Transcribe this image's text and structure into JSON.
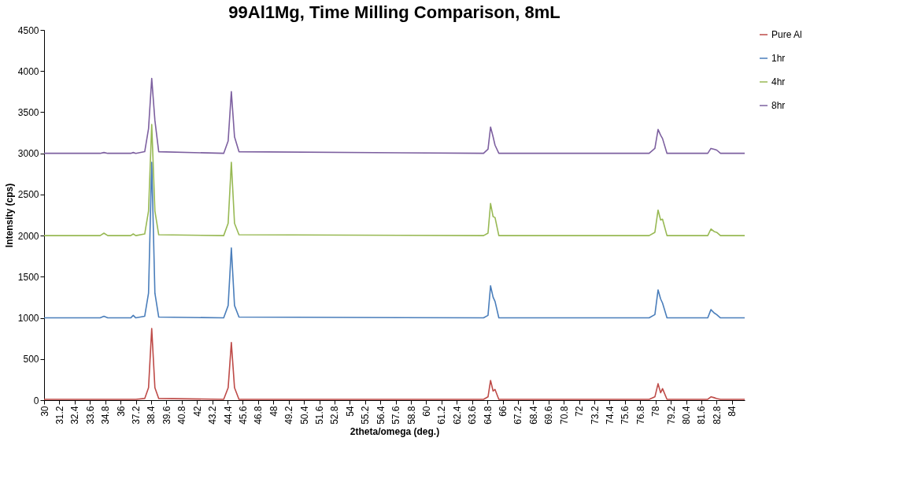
{
  "chart_data": {
    "type": "line",
    "title": "99Al1Mg, Time Milling Comparison, 8mL",
    "xlabel": "2theta/omega (deg.)",
    "ylabel": "Intensity (cps)",
    "x": [
      30,
      34.4,
      34.7,
      35.0,
      36.8,
      37.0,
      37.2,
      37.9,
      38.2,
      38.45,
      38.7,
      39.0,
      44.1,
      44.45,
      44.7,
      44.95,
      45.3,
      64.5,
      64.85,
      65.05,
      65.25,
      65.4,
      65.7,
      77.5,
      77.95,
      78.2,
      78.4,
      78.55,
      78.9,
      82.1,
      82.35,
      82.6,
      82.8,
      83.1,
      85
    ],
    "series": [
      {
        "name": "Pure Al",
        "color": "#be4b48",
        "values": [
          10,
          10,
          10,
          10,
          10,
          10,
          10,
          20,
          150,
          870,
          150,
          20,
          10,
          150,
          700,
          150,
          10,
          10,
          40,
          240,
          110,
          130,
          10,
          10,
          40,
          200,
          90,
          140,
          10,
          10,
          40,
          30,
          20,
          10,
          10
        ]
      },
      {
        "name": "1hr",
        "color": "#4a7ebb",
        "values": [
          1000,
          1000,
          1020,
          1000,
          1000,
          1030,
          1000,
          1020,
          1300,
          2890,
          1300,
          1010,
          1000,
          1150,
          1850,
          1150,
          1010,
          1000,
          1030,
          1390,
          1250,
          1200,
          1000,
          1000,
          1040,
          1340,
          1230,
          1180,
          1000,
          1000,
          1100,
          1060,
          1040,
          1000,
          1000
        ]
      },
      {
        "name": "4hr",
        "color": "#98b954",
        "values": [
          2000,
          2000,
          2030,
          2000,
          2000,
          2020,
          2000,
          2020,
          2300,
          3350,
          2300,
          2010,
          2000,
          2150,
          2890,
          2150,
          2010,
          2000,
          2030,
          2390,
          2230,
          2220,
          2000,
          2000,
          2040,
          2310,
          2190,
          2200,
          2000,
          2000,
          2080,
          2050,
          2040,
          2000,
          2000
        ]
      },
      {
        "name": "8hr",
        "color": "#7d60a0",
        "values": [
          3000,
          3000,
          3010,
          3000,
          3000,
          3010,
          3000,
          3020,
          3300,
          3910,
          3400,
          3020,
          3000,
          3150,
          3750,
          3200,
          3020,
          3000,
          3050,
          3320,
          3200,
          3100,
          3000,
          3000,
          3060,
          3290,
          3220,
          3180,
          3000,
          3000,
          3060,
          3050,
          3040,
          3000,
          3000
        ]
      }
    ],
    "xlim": [
      30,
      85
    ],
    "xticks": [
      30,
      31.2,
      32.4,
      33.6,
      34.8,
      36,
      37.2,
      38.4,
      39.6,
      40.8,
      42,
      43.2,
      44.4,
      45.6,
      46.8,
      48,
      49.2,
      50.4,
      51.6,
      52.8,
      54,
      55.2,
      56.4,
      57.6,
      58.8,
      60,
      61.2,
      62.4,
      63.6,
      64.8,
      66,
      67.2,
      68.4,
      69.6,
      70.8,
      72,
      73.2,
      74.4,
      75.6,
      76.8,
      78,
      79.2,
      80.4,
      81.6,
      82.8,
      84
    ],
    "ylim": [
      0,
      4500
    ],
    "yticks": [
      0,
      500,
      1000,
      1500,
      2000,
      2500,
      3000,
      3500,
      4000,
      4500
    ],
    "grid": false,
    "legend": "right",
    "marker": "none",
    "line_style": "solid"
  }
}
